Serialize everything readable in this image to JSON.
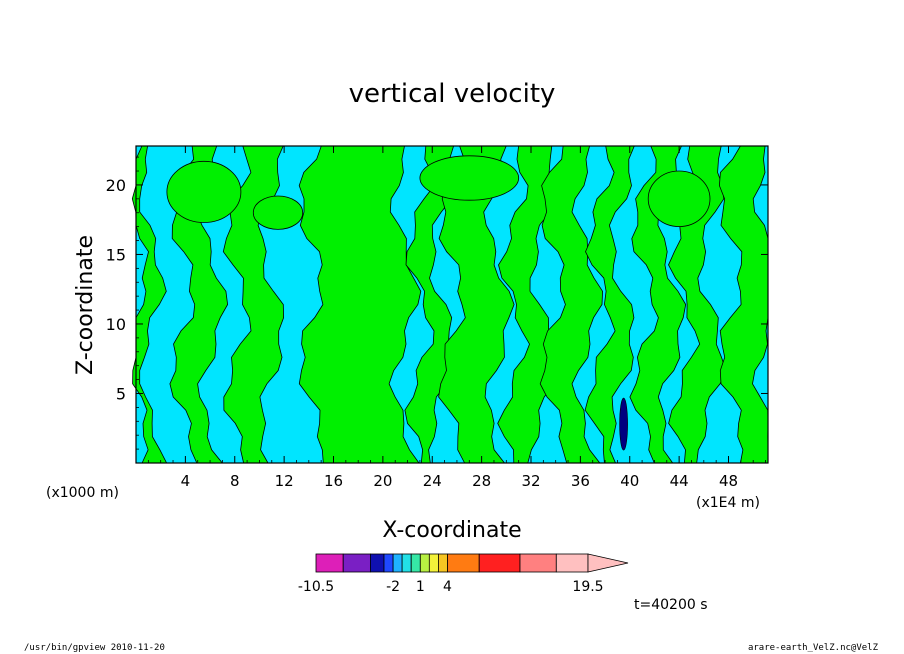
{
  "chart_data": {
    "type": "heatmap",
    "title": "vertical velocity",
    "xlabel": "X-coordinate",
    "ylabel": "Z-coordinate",
    "x_unit": "(x1E4 m)",
    "y_unit": "(x1000 m)",
    "x_ticks": [
      "4",
      "8",
      "12",
      "16",
      "20",
      "24",
      "28",
      "32",
      "36",
      "40",
      "44",
      "48"
    ],
    "y_ticks": [
      "5",
      "10",
      "15",
      "20"
    ],
    "xlim": [
      0,
      51.2
    ],
    "ylim": [
      0,
      22.8
    ],
    "colorbar": {
      "levels": [
        -10.5,
        -7.5,
        -4.5,
        -3,
        -2,
        -1,
        0,
        1,
        2,
        3,
        4,
        7.5,
        12,
        16,
        19.5
      ],
      "labels": [
        "-10.5",
        "-2",
        "1",
        "4",
        "19.5"
      ],
      "colors": [
        "#dd1fb8",
        "#7a1fc4",
        "#0f10b0",
        "#1f49ff",
        "#1fb2ff",
        "#22e0e6",
        "#36e8a6",
        "#b8f042",
        "#f4f23a",
        "#f7c522",
        "#ff7b12",
        "#ff2020",
        "#ff8080",
        "#ffc0c0"
      ]
    },
    "dominant_colors": {
      "negative": "#00e5ff",
      "positive": "#00f000",
      "strong_negative": "#000080"
    },
    "time_label": "t=40200 s"
  },
  "footer": {
    "left": "/usr/bin/gpview   2010-11-20",
    "right": "arare-earth_VelZ.nc@VelZ"
  }
}
